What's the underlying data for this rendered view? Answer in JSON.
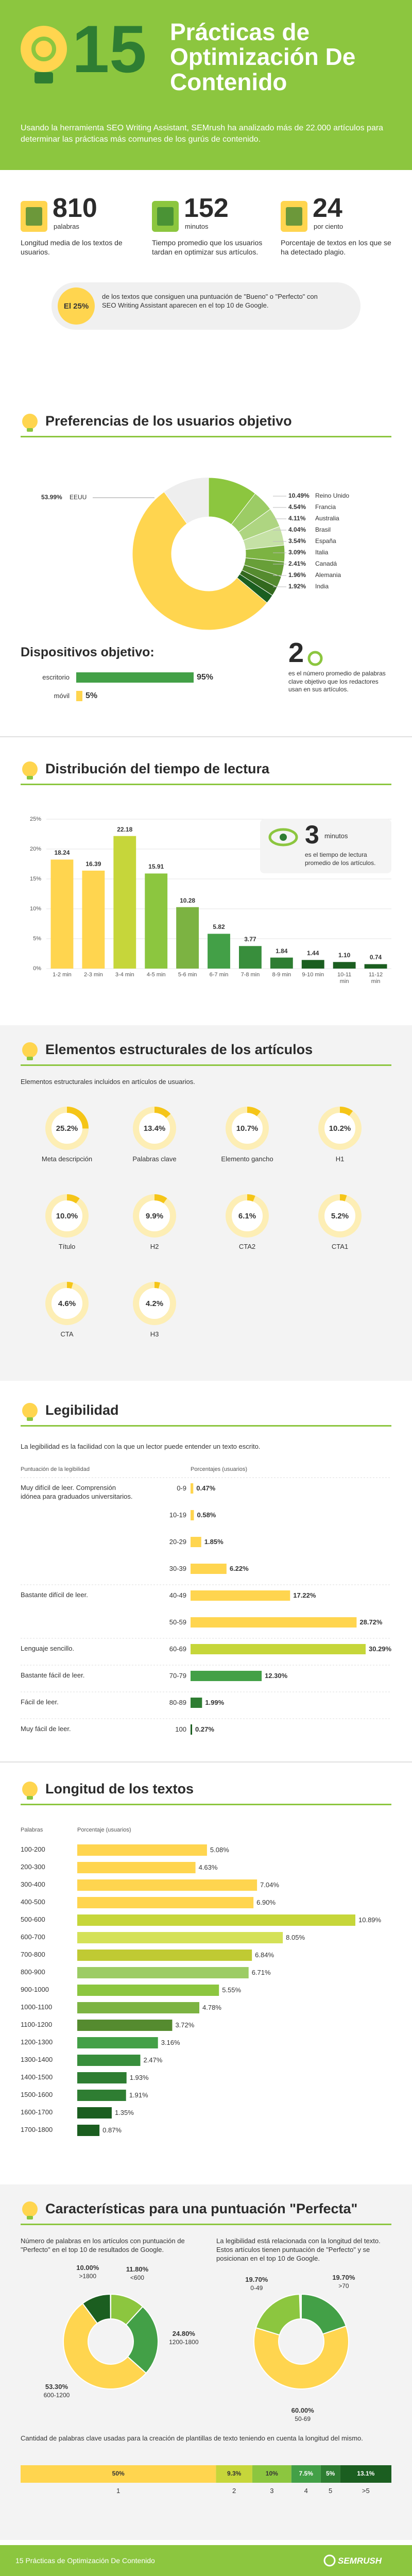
{
  "header": {
    "number": "15",
    "title": "Prácticas de Optimización De Contenido",
    "intro": "Usando la herramienta SEO Writing Assistant, SEMrush ha analizado más de 22.000 artículos para determinar las prácticas más comunes de los gurús de contenido."
  },
  "stats": [
    {
      "value": 810,
      "unit": "palabras",
      "text": "Longitud media de los textos de usuarios."
    },
    {
      "value": 152,
      "unit": "minutos",
      "text": "Tiempo promedio que los usuarios tardan en optimizar sus artículos."
    },
    {
      "value": 24,
      "unit": "por ciento",
      "text": "Porcentaje de textos en los que se ha detectado plagio."
    }
  ],
  "top10_note": {
    "value": 25,
    "value_label": "El 25%",
    "text": "de los textos que consiguen una puntuación de \"Bueno\" o \"Perfecto\" con SEO Writing Assistant aparecen en el top 10 de Google."
  },
  "countries": {
    "type": "pie",
    "title": "Preferencias de los usuarios objetivo",
    "categories": [
      "EEUU",
      "Reino Unido",
      "Francia",
      "Australia",
      "Brasil",
      "España",
      "Italia",
      "Canadá",
      "Alemania",
      "India"
    ],
    "values": [
      53.99,
      10.49,
      4.54,
      4.11,
      4.04,
      3.54,
      3.09,
      2.41,
      1.96,
      1.92
    ],
    "value_labels": [
      "53.99%",
      "10.49%",
      "4.54%",
      "4.11%",
      "4.04%",
      "3.54%",
      "3.09%",
      "2.41%",
      "1.96%",
      "1.92%"
    ],
    "colors": [
      "#ffd54f",
      "#8cc63f",
      "#9ccc65",
      "#aed581",
      "#c5e1a5",
      "#7cb342",
      "#689f38",
      "#558b2f",
      "#33691e",
      "#1b5e20"
    ]
  },
  "devices": {
    "type": "bar",
    "title": "Dispositivos objetivo:",
    "categories": [
      "escritorio",
      "móvil"
    ],
    "values": [
      95,
      5
    ],
    "value_labels": [
      "95%",
      "5%"
    ],
    "colors": [
      "#43a047",
      "#ffd54f"
    ]
  },
  "keywords_note": {
    "value": 2,
    "text": "es el número promedio de palabras clave objetivo que los redactores usan en sus artículos."
  },
  "reading_time": {
    "type": "bar",
    "title": "Distribución del tiempo de lectura",
    "categories": [
      "1-2 min",
      "2-3 min",
      "3-4 min",
      "4-5 min",
      "5-6 min",
      "6-7 min",
      "7-8 min",
      "8-9 min",
      "9-10 min",
      "10-11 min",
      "11-12 min"
    ],
    "values": [
      18.24,
      16.39,
      22.18,
      15.91,
      10.28,
      5.82,
      3.77,
      1.84,
      1.44,
      1.1,
      0.74
    ],
    "value_labels": [
      "18.24",
      "16.39",
      "22.18",
      "15.91",
      "10.28",
      "5.82",
      "3.77",
      "1.84",
      "1.44",
      "1.10",
      "0.74"
    ],
    "colors": [
      "#ffd54f",
      "#ffd54f",
      "#c6d63a",
      "#8cc63f",
      "#7cb342",
      "#43a047",
      "#388e3c",
      "#2e7d32",
      "#1b5e20",
      "#1b5e20",
      "#1b5e20"
    ],
    "ylim": [
      0,
      25
    ],
    "yticks": [
      {
        "value": 0,
        "label": "0%"
      },
      {
        "value": 5,
        "label": "5%"
      },
      {
        "value": 10,
        "label": "10%"
      },
      {
        "value": 15,
        "label": "15%"
      },
      {
        "value": 20,
        "label": "20%"
      },
      {
        "value": 25,
        "label": "25%"
      }
    ],
    "grid": true,
    "note": {
      "value": 3,
      "unit": "minutos",
      "text": "es el tiempo de lectura promedio de los artículos."
    }
  },
  "structure": {
    "type": "ring",
    "title": "Elementos estructurales de los artículos",
    "subtitle": "Elementos estructurales incluidos en artículos de usuarios.",
    "categories": [
      "Meta descripción",
      "Palabras clave",
      "Elemento gancho",
      "H1",
      "Título",
      "H2",
      "CTA2",
      "CTA1",
      "CTA",
      "H3"
    ],
    "values": [
      25.2,
      13.4,
      10.7,
      10.2,
      10.0,
      9.9,
      6.1,
      5.2,
      4.6,
      4.2
    ],
    "value_labels": [
      "25.2%",
      "13.4%",
      "10.7%",
      "10.2%",
      "10.0%",
      "9.9%",
      "6.1%",
      "5.2%",
      "4.6%",
      "4.2%"
    ]
  },
  "readability": {
    "type": "hbar",
    "title": "Legibilidad",
    "subtitle": "La legibilidad es la facilidad con la que un lector puede entender un texto escrito.",
    "col_headers": [
      "Puntuación de la legibilidad",
      "Porcentajes (usuarios)"
    ],
    "categories": [
      "0-9",
      "10-19",
      "20-29",
      "30-39",
      "40-49",
      "50-59",
      "60-69",
      "70-79",
      "80-89",
      "100"
    ],
    "values": [
      0.47,
      0.58,
      1.85,
      6.22,
      17.22,
      28.72,
      30.29,
      12.3,
      1.99,
      0.27
    ],
    "value_labels": [
      "0.47%",
      "0.58%",
      "1.85%",
      "6.22%",
      "17.22%",
      "28.72%",
      "30.29%",
      "12.30%",
      "1.99%",
      "0.27%"
    ],
    "descriptions": [
      "Muy difícil de leer. Comprensión idónea para graduados universitarios.",
      null,
      null,
      null,
      "Bastante difícil de leer.",
      null,
      "Lenguaje sencillo.",
      "Bastante fácil de leer.",
      "Fácil de leer.",
      "Muy fácil de leer."
    ],
    "colors": [
      "#ffd54f",
      "#ffd54f",
      "#ffd54f",
      "#ffd54f",
      "#ffd54f",
      "#ffd54f",
      "#c6d63a",
      "#43a047",
      "#2e7d32",
      "#1b5e20"
    ]
  },
  "text_length": {
    "type": "hbar",
    "title": "Longitud de los textos",
    "col_headers": [
      "Palabras",
      "Porcentaje (usuarios)"
    ],
    "categories": [
      "100-200",
      "200-300",
      "300-400",
      "400-500",
      "500-600",
      "600-700",
      "700-800",
      "800-900",
      "900-1000",
      "1000-1100",
      "1100-1200",
      "1200-1300",
      "1300-1400",
      "1400-1500",
      "1500-1600",
      "1600-1700",
      "1700-1800"
    ],
    "values": [
      5.08,
      4.63,
      7.04,
      6.9,
      10.89,
      8.05,
      6.84,
      6.71,
      5.55,
      4.78,
      3.72,
      3.16,
      2.47,
      1.93,
      1.91,
      1.35,
      0.87
    ],
    "value_labels": [
      "5.08%",
      "4.63%",
      "7.04%",
      "6.90%",
      "10.89%",
      "8.05%",
      "6.84%",
      "6.71%",
      "5.55%",
      "4.78%",
      "3.72%",
      "3.16%",
      "2.47%",
      "1.93%",
      "1.91%",
      "1.35%",
      "0.87%"
    ],
    "colors": [
      "#ffd54f",
      "#ffd54f",
      "#ffd54f",
      "#ffd54f",
      "#c6d63a",
      "#d4e157",
      "#c0ca33",
      "#9ccc65",
      "#8cc63f",
      "#7cb342",
      "#558b2f",
      "#43a047",
      "#388e3c",
      "#2e7d32",
      "#2e7d32",
      "#1b5e20",
      "#1b5e20"
    ]
  },
  "perfect": {
    "title": "Características para una puntuación \"Perfecta\"",
    "charts": [
      {
        "type": "pie",
        "text": "Número de palabras en los artículos con puntuación de \"Perfecto\" en el top 10 de resultados de Google.",
        "categories": [
          "<600",
          "1200-1800",
          "600-1200",
          ">1800"
        ],
        "values": [
          11.8,
          24.8,
          53.3,
          10.0
        ],
        "value_labels": [
          "11.80%",
          "24.80%",
          "53.30%",
          "10.00%"
        ],
        "colors": [
          "#8cc63f",
          "#43a047",
          "#ffd54f",
          "#1b5e20"
        ]
      },
      {
        "type": "pie",
        "text": "La legibilidad está relacionada con la longitud del texto. Estos artículos tienen puntuación de \"Perfecto\" y se posicionan en el top 10 de Google.",
        "categories": [
          ">70",
          "50-69",
          "0-49"
        ],
        "values": [
          19.7,
          60.0,
          19.7
        ],
        "value_labels": [
          "19.70%",
          "60.00%",
          "19.70%"
        ],
        "colors": [
          "#43a047",
          "#ffd54f",
          "#8cc63f"
        ]
      }
    ],
    "keywords": {
      "type": "stacked",
      "text": "Cantidad de palabras clave usadas para la creación de plantillas de texto teniendo en cuenta la longitud del mismo.",
      "categories": [
        "1",
        "2",
        "3",
        "4",
        "5",
        ">5"
      ],
      "values": [
        50,
        9.3,
        10,
        7.5,
        5,
        13.1
      ],
      "value_labels": [
        "50%",
        "9.3%",
        "10%",
        "7.5%",
        "5%",
        "13.1%"
      ],
      "colors": [
        "#ffd54f",
        "#c6d63a",
        "#8cc63f",
        "#43a047",
        "#2e7d32",
        "#1b5e20"
      ]
    }
  },
  "footer": {
    "title": "15 Prácticas de Optimización De Contenido",
    "logo": "SEMRUSH"
  }
}
